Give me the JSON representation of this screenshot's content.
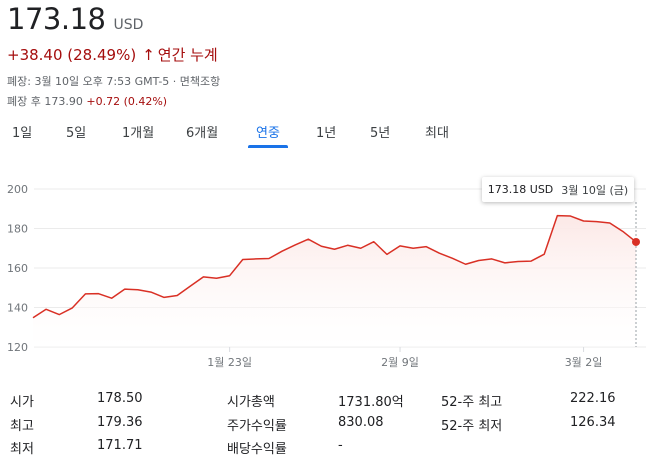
{
  "quote": {
    "price": "173.18",
    "currency": "USD",
    "change": "+38.40 (28.49%)",
    "change_arrow": "↑",
    "period": "연간 누계",
    "close_info": "폐장: 3월 10일 오후 7:53 GMT-5 · 면책조항",
    "after_label": "폐장 후",
    "after_price": "173.90",
    "after_change": "+0.72 (0.42%)"
  },
  "tabs": [
    {
      "label": "1일"
    },
    {
      "label": "5일"
    },
    {
      "label": "1개월"
    },
    {
      "label": "6개월"
    },
    {
      "label": "연중"
    },
    {
      "label": "1년"
    },
    {
      "label": "5년"
    },
    {
      "label": "최대"
    }
  ],
  "active_tab": 4,
  "tooltip": {
    "price": "173.18 USD",
    "date": "3월 10일 (금)"
  },
  "colors": {
    "line": "#d93025",
    "fill": "#fce8e6",
    "accent": "#1a73e8",
    "negative": "#a50e0e"
  },
  "chart_data": {
    "type": "area",
    "ylim": [
      120,
      200
    ],
    "yticks": [
      "200",
      "180",
      "160",
      "140",
      "120"
    ],
    "xticks": [
      {
        "label": "1월 23일",
        "index": 15
      },
      {
        "label": "2월 9일",
        "index": 28
      },
      {
        "label": "3월 2일",
        "index": 42
      }
    ],
    "values": [
      134.8,
      139.1,
      136.4,
      139.8,
      146.9,
      147.0,
      144.7,
      149.3,
      149.0,
      147.8,
      145.1,
      146.1,
      150.8,
      155.5,
      154.8,
      156.1,
      164.3,
      164.6,
      164.8,
      168.5,
      171.7,
      174.6,
      171.0,
      169.5,
      171.5,
      170.0,
      173.3,
      166.9,
      171.2,
      170.0,
      170.8,
      167.5,
      164.9,
      161.9,
      163.8,
      164.6,
      162.6,
      163.3,
      163.5,
      167.0,
      186.5,
      186.3,
      183.8,
      183.5,
      182.8,
      178.5,
      173.18
    ]
  },
  "stats": {
    "col1": [
      {
        "label": "시가",
        "value": "178.50"
      },
      {
        "label": "최고",
        "value": "179.36"
      },
      {
        "label": "최저",
        "value": "171.71"
      }
    ],
    "col2": [
      {
        "label": "시가총액",
        "value": "1731.80억"
      },
      {
        "label": "주가수익률",
        "value": "830.08"
      },
      {
        "label": "배당수익률",
        "value": "-"
      }
    ],
    "col3": [
      {
        "label": "52-주 최고",
        "value": "222.16"
      },
      {
        "label": "52-주 최저",
        "value": "126.34"
      }
    ]
  }
}
